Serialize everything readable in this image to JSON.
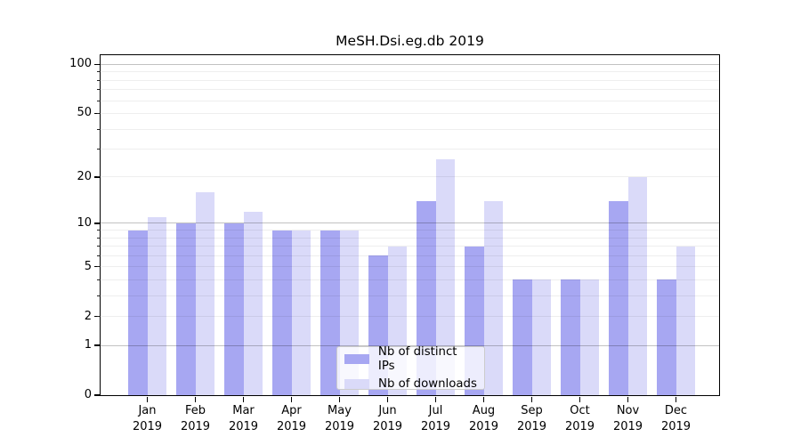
{
  "chart_data": {
    "type": "bar",
    "title": "MeSH.Dsi.eg.db 2019",
    "categories": [
      "Jan\n2019",
      "Feb\n2019",
      "Mar\n2019",
      "Apr\n2019",
      "May\n2019",
      "Jun\n2019",
      "Jul\n2019",
      "Aug\n2019",
      "Sep\n2019",
      "Oct\n2019",
      "Nov\n2019",
      "Dec\n2019"
    ],
    "series": [
      {
        "name": "Nb of distinct IPs",
        "color": "#a7a7f2",
        "values": [
          9,
          10,
          10,
          9,
          9,
          6,
          14,
          7,
          4,
          4,
          14,
          4
        ]
      },
      {
        "name": "Nb of downloads",
        "color": "#dadaf9",
        "values": [
          11,
          16,
          12,
          9,
          9,
          7,
          26,
          14,
          4,
          4,
          20,
          7
        ]
      }
    ],
    "xlabel": "",
    "ylabel": "",
    "yscale": "log1p",
    "ylim": [
      0,
      114
    ],
    "yticks": [
      0,
      1,
      2,
      5,
      10,
      20,
      50,
      100
    ],
    "major_gridlines": [
      1,
      10,
      100
    ],
    "minor_gridlines": [
      2,
      3,
      4,
      5,
      6,
      7,
      8,
      9,
      20,
      30,
      40,
      50,
      60,
      70,
      80,
      90
    ],
    "grid": "on",
    "legend_position": "lower center"
  }
}
